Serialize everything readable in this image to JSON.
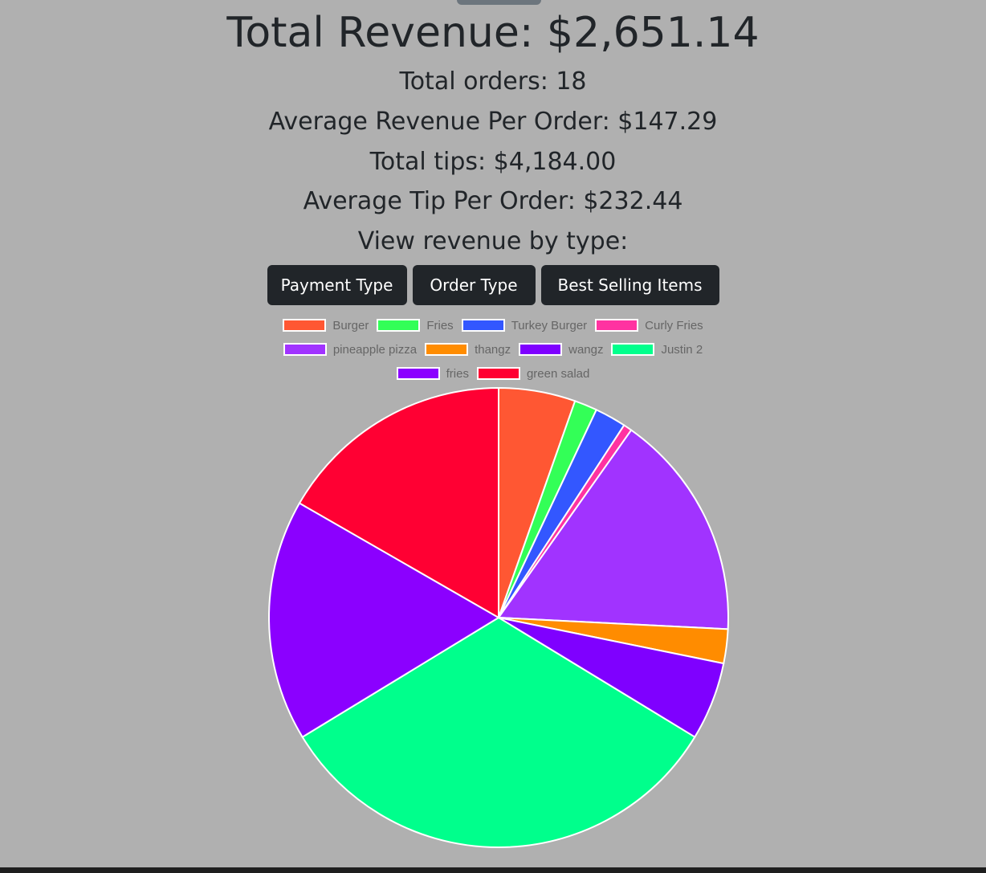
{
  "page": {
    "title": "Total Revenue: $2,651.14",
    "stats": [
      "Total orders: 18",
      "Average Revenue Per Order: $147.29",
      "Total tips: $4,184.00",
      "Average Tip Per Order: $232.44",
      "View revenue by type:"
    ]
  },
  "buttons": {
    "payment_type": "Payment Type",
    "order_type": "Order Type",
    "best_selling": "Best Selling Items"
  },
  "chart_data": {
    "type": "pie",
    "title": "",
    "legend_position": "top",
    "categories": [
      "Burger",
      "Fries",
      "Turkey Burger",
      "Curly Fries",
      "pineapple pizza",
      "thangz",
      "wangz",
      "Justin 2",
      "fries",
      "green salad"
    ],
    "values": [
      5.4,
      1.6,
      2.2,
      0.6,
      16.0,
      2.4,
      5.5,
      32.6,
      17.0,
      16.7
    ],
    "colors": [
      "#ff5733",
      "#33ff57",
      "#3357ff",
      "#ff33a1",
      "#a133ff",
      "#ff8c00",
      "#7f00ff",
      "#00ff8c",
      "#8b00ff",
      "#ff0033"
    ]
  }
}
